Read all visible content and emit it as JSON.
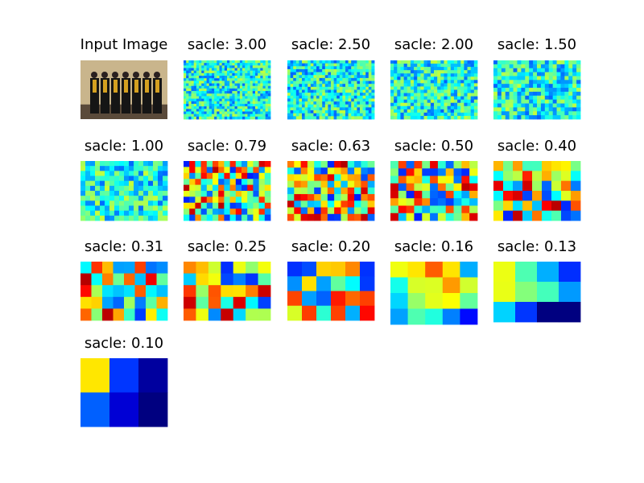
{
  "panels": [
    {
      "title": "Input Image"
    },
    {
      "title": "sacle: 3.00"
    },
    {
      "title": "sacle: 2.50"
    },
    {
      "title": "sacle: 2.00"
    },
    {
      "title": "sacle: 1.50"
    },
    {
      "title": "sacle: 1.00"
    },
    {
      "title": "sacle: 0.79"
    },
    {
      "title": "sacle: 0.63"
    },
    {
      "title": "sacle: 0.50"
    },
    {
      "title": "sacle: 0.40"
    },
    {
      "title": "sacle: 0.31"
    },
    {
      "title": "sacle: 0.25"
    },
    {
      "title": "sacle: 0.20"
    },
    {
      "title": "sacle: 0.16"
    },
    {
      "title": "sacle: 0.13"
    },
    {
      "title": "sacle: 0.10"
    }
  ]
}
